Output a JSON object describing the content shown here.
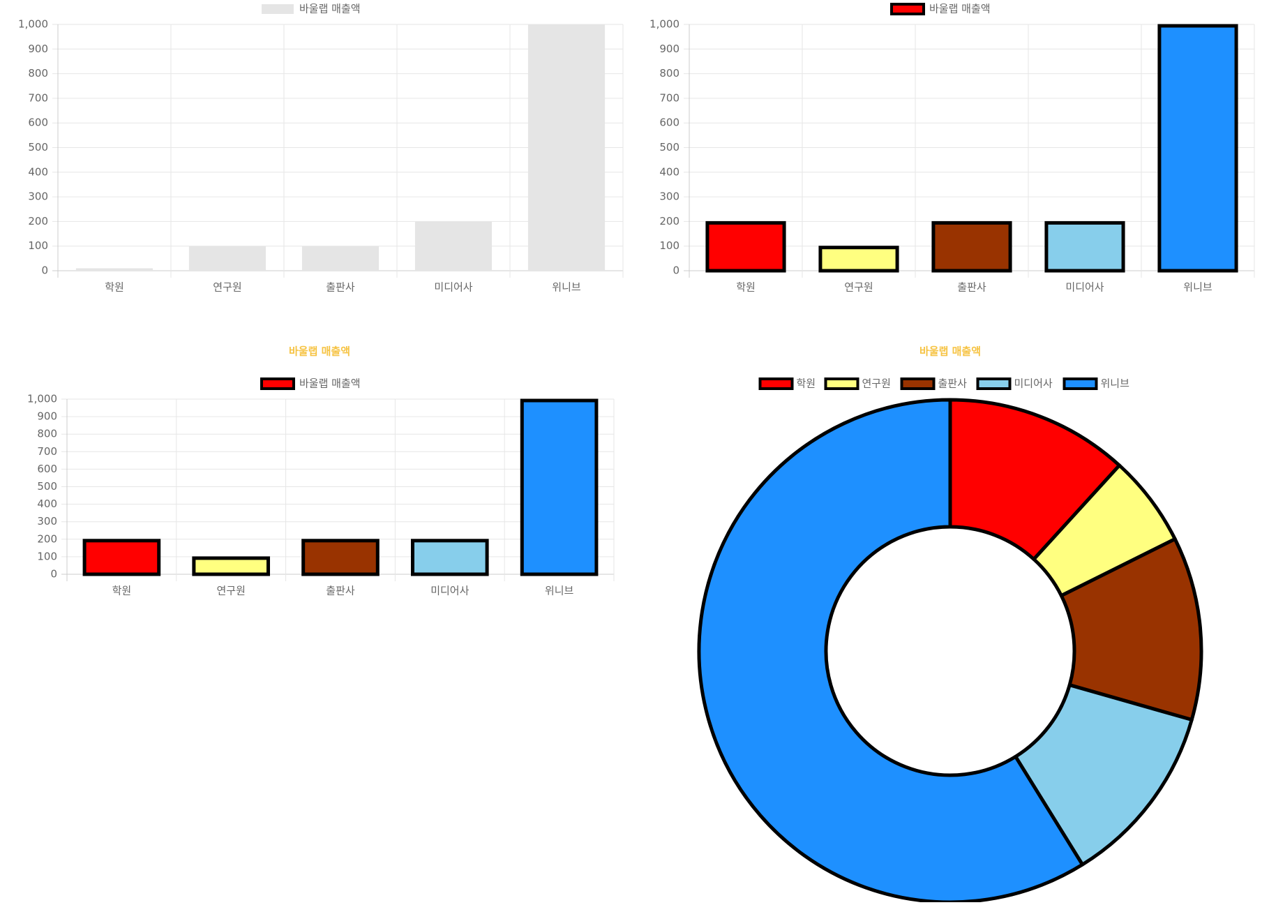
{
  "colors": {
    "grid": "#e6e6e6",
    "axis": "#cccccc",
    "tick_text": "#666666",
    "title": "#f6c342",
    "border": "#000000",
    "default_bar": "#e5e5e5"
  },
  "chart_data": [
    {
      "type": "bar",
      "title": "",
      "legend": {
        "position": "top",
        "entries": [
          "바울랩 매출액"
        ]
      },
      "categories": [
        "학원",
        "연구원",
        "출판사",
        "미디어사",
        "위니브"
      ],
      "series": [
        {
          "name": "바울랩 매출액",
          "values": [
            10,
            100,
            100,
            200,
            1000
          ],
          "colors": [
            "#e5e5e5",
            "#e5e5e5",
            "#e5e5e5",
            "#e5e5e5",
            "#e5e5e5"
          ],
          "bordered": false
        }
      ],
      "y_ticks": [
        "0",
        "100",
        "200",
        "300",
        "400",
        "500",
        "600",
        "700",
        "800",
        "900",
        "1,000"
      ],
      "ylim": [
        0,
        1000
      ],
      "grid": true
    },
    {
      "type": "bar",
      "title": "",
      "legend": {
        "position": "top",
        "entries": [
          "바울랩 매출액"
        ]
      },
      "categories": [
        "학원",
        "연구원",
        "출판사",
        "미디어사",
        "위니브"
      ],
      "series": [
        {
          "name": "바울랩 매출액",
          "values": [
            200,
            100,
            200,
            200,
            1000
          ],
          "colors": [
            "#ff0000",
            "#ffff80",
            "#993300",
            "#87ceeb",
            "#1e90ff"
          ],
          "bordered": true
        }
      ],
      "y_ticks": [
        "0",
        "100",
        "200",
        "300",
        "400",
        "500",
        "600",
        "700",
        "800",
        "900",
        "1,000"
      ],
      "ylim": [
        0,
        1000
      ],
      "grid": true
    },
    {
      "type": "bar",
      "title": "바울랩 매출액",
      "legend": {
        "position": "top",
        "entries": [
          "바울랩 매출액"
        ]
      },
      "categories": [
        "학원",
        "연구원",
        "출판사",
        "미디어사",
        "위니브"
      ],
      "series": [
        {
          "name": "바울랩 매출액",
          "values": [
            200,
            100,
            200,
            200,
            1000
          ],
          "colors": [
            "#ff0000",
            "#ffff80",
            "#993300",
            "#87ceeb",
            "#1e90ff"
          ],
          "bordered": true
        }
      ],
      "y_ticks": [
        "0",
        "100",
        "200",
        "300",
        "400",
        "500",
        "600",
        "700",
        "800",
        "900",
        "1,000"
      ],
      "ylim": [
        0,
        1000
      ],
      "grid": true
    },
    {
      "type": "pie",
      "subtype": "doughnut",
      "title": "바울랩 매출액",
      "legend": {
        "position": "top",
        "entries": [
          "학원",
          "연구원",
          "출판사",
          "미디어사",
          "위니브"
        ]
      },
      "categories": [
        "학원",
        "연구원",
        "출판사",
        "미디어사",
        "위니브"
      ],
      "values": [
        200,
        100,
        200,
        200,
        1000
      ],
      "colors": [
        "#ff0000",
        "#ffff80",
        "#993300",
        "#87ceeb",
        "#1e90ff"
      ]
    }
  ]
}
